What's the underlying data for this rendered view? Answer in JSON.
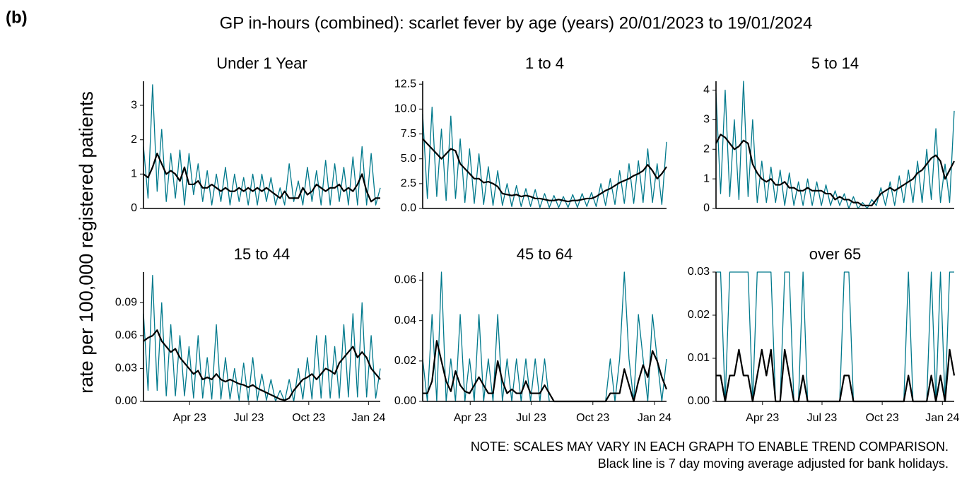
{
  "label": "(b)",
  "title": "GP in-hours (combined): scarlet fever by age (years) 20/01/2023 to 19/01/2024",
  "y_label": "rate per 100,000 registered patients",
  "notes": [
    "NOTE: SCALES MAY VARY IN EACH GRAPH TO ENABLE TREND COMPARISON.",
    "Black line is 7 day moving average adjusted for bank holidays."
  ],
  "chart_data": [
    {
      "type": "line",
      "title": "Under 1 Year",
      "x": [
        0,
        7,
        14,
        21,
        28,
        35,
        42,
        49,
        56,
        63,
        70,
        77,
        84,
        91,
        98,
        105,
        112,
        119,
        126,
        133,
        140,
        147,
        154,
        161,
        168,
        175,
        182,
        189,
        196,
        203,
        210,
        217,
        224,
        231,
        238,
        245,
        252,
        259,
        266,
        273,
        280,
        287,
        294,
        301,
        308,
        315,
        322,
        329,
        336,
        343,
        350,
        357,
        364
      ],
      "xlim": [
        0,
        364
      ],
      "ylim": [
        0,
        3.7
      ],
      "yticks": [
        0,
        1,
        2,
        3
      ],
      "series": [
        {
          "color": "#00798c",
          "values": [
            1.8,
            0.3,
            3.6,
            0.5,
            2.3,
            0.2,
            1.6,
            0.3,
            1.7,
            0.1,
            1.6,
            0.4,
            1.3,
            0.2,
            1.1,
            0.1,
            1.0,
            0.2,
            1.2,
            0.1,
            1.0,
            0.2,
            0.9,
            0.1,
            1.0,
            0.1,
            1.0,
            0.2,
            0.9,
            0.1,
            0.6,
            0.1,
            1.3,
            0.2,
            0.8,
            0.1,
            1.2,
            0.2,
            1.1,
            0.1,
            1.4,
            0.1,
            1.3,
            0.2,
            1.2,
            0.1,
            1.5,
            0.1,
            1.8,
            0.1,
            1.6,
            0.1,
            0.6
          ]
        },
        {
          "color": "#000000",
          "values": [
            1.0,
            0.9,
            1.2,
            1.6,
            1.3,
            1.0,
            1.1,
            1.0,
            0.8,
            1.2,
            0.7,
            0.7,
            0.8,
            0.6,
            0.6,
            0.7,
            0.6,
            0.5,
            0.6,
            0.5,
            0.5,
            0.6,
            0.5,
            0.6,
            0.5,
            0.6,
            0.5,
            0.6,
            0.5,
            0.4,
            0.3,
            0.5,
            0.3,
            0.3,
            0.3,
            0.6,
            0.4,
            0.5,
            0.7,
            0.6,
            0.5,
            0.6,
            0.6,
            0.7,
            0.5,
            0.6,
            0.5,
            0.7,
            1.0,
            0.5,
            0.2,
            0.3,
            0.3
          ]
        }
      ]
    },
    {
      "type": "line",
      "title": "1 to 4",
      "x": [
        0,
        7,
        14,
        21,
        28,
        35,
        42,
        49,
        56,
        63,
        70,
        77,
        84,
        91,
        98,
        105,
        112,
        119,
        126,
        133,
        140,
        147,
        154,
        161,
        168,
        175,
        182,
        189,
        196,
        203,
        210,
        217,
        224,
        231,
        238,
        245,
        252,
        259,
        266,
        273,
        280,
        287,
        294,
        301,
        308,
        315,
        322,
        329,
        336,
        343,
        350,
        357,
        364
      ],
      "xlim": [
        0,
        364
      ],
      "ylim": [
        0,
        12.8
      ],
      "yticks": [
        {
          "value": 0,
          "label": "0.0"
        },
        2.5,
        {
          "value": 5,
          "label": "5.0"
        },
        7.5,
        {
          "value": 10,
          "label": "10.0"
        },
        12.5
      ],
      "series": [
        {
          "color": "#00798c",
          "values": [
            9.5,
            1.0,
            10.2,
            1.2,
            8.0,
            0.8,
            9.3,
            1.0,
            7.0,
            0.6,
            6.0,
            0.5,
            5.5,
            0.4,
            4.2,
            0.3,
            3.8,
            0.3,
            2.5,
            0.2,
            2.3,
            0.2,
            2.0,
            0.2,
            1.9,
            0.1,
            1.5,
            0.1,
            1.3,
            0.1,
            1.2,
            0.1,
            1.4,
            0.1,
            1.5,
            0.2,
            1.6,
            0.2,
            2.5,
            0.3,
            3.0,
            0.4,
            3.8,
            0.5,
            4.5,
            0.5,
            4.8,
            0.6,
            6.0,
            0.6,
            4.5,
            0.4,
            6.7
          ]
        },
        {
          "color": "#000000",
          "values": [
            7,
            6.5,
            6,
            5.5,
            5,
            5.5,
            6,
            5.8,
            4.5,
            4,
            3.5,
            3,
            3,
            2.6,
            2.7,
            2.5,
            2.2,
            1.5,
            1.4,
            1.3,
            1.4,
            1.2,
            1.3,
            1.2,
            1.0,
            1.0,
            0.9,
            0.8,
            0.8,
            0.9,
            0.8,
            0.7,
            0.8,
            0.8,
            0.9,
            1.0,
            1.0,
            1.2,
            1.5,
            1.8,
            2.0,
            2.3,
            2.6,
            2.8,
            3.0,
            3.3,
            3.5,
            3.8,
            4.4,
            3.8,
            3.0,
            3.5,
            4.2
          ]
        }
      ]
    },
    {
      "type": "line",
      "title": "5 to 14",
      "x": [
        0,
        7,
        14,
        21,
        28,
        35,
        42,
        49,
        56,
        63,
        70,
        77,
        84,
        91,
        98,
        105,
        112,
        119,
        126,
        133,
        140,
        147,
        154,
        161,
        168,
        175,
        182,
        189,
        196,
        203,
        210,
        217,
        224,
        231,
        238,
        245,
        252,
        259,
        266,
        273,
        280,
        287,
        294,
        301,
        308,
        315,
        322,
        329,
        336,
        343,
        350,
        357,
        364
      ],
      "xlim": [
        0,
        364
      ],
      "ylim": [
        0,
        4.3
      ],
      "yticks": [
        0,
        1,
        2,
        3,
        4
      ],
      "series": [
        {
          "color": "#00798c",
          "values": [
            3.9,
            0.5,
            4.0,
            0.4,
            3.0,
            0.3,
            4.3,
            0.4,
            3.0,
            0.2,
            1.6,
            0.2,
            1.4,
            0.2,
            1.3,
            0.1,
            1.2,
            0.1,
            0.9,
            0.1,
            1.0,
            0.1,
            0.9,
            0.1,
            0.8,
            0.1,
            0.6,
            0.1,
            0.5,
            0.0,
            0.4,
            0.0,
            0.2,
            0.0,
            0.3,
            0.1,
            0.7,
            0.1,
            0.9,
            0.1,
            1.1,
            0.2,
            1.3,
            0.2,
            1.6,
            0.2,
            2.0,
            0.3,
            2.7,
            0.2,
            1.5,
            0.2,
            3.3
          ]
        },
        {
          "color": "#000000",
          "values": [
            2.2,
            2.5,
            2.4,
            2.2,
            2.0,
            2.1,
            2.3,
            2.2,
            1.5,
            1.2,
            1.0,
            0.9,
            1.0,
            0.8,
            0.8,
            0.9,
            0.7,
            0.7,
            0.6,
            0.6,
            0.7,
            0.6,
            0.6,
            0.6,
            0.5,
            0.5,
            0.3,
            0.4,
            0.3,
            0.3,
            0.2,
            0.2,
            0.1,
            0.1,
            0.1,
            0.3,
            0.5,
            0.6,
            0.7,
            0.6,
            0.7,
            0.8,
            0.9,
            1.0,
            1.2,
            1.3,
            1.5,
            1.7,
            1.8,
            1.6,
            1.0,
            1.3,
            1.6
          ]
        }
      ]
    },
    {
      "type": "line",
      "title": "15 to 44",
      "x": [
        0,
        7,
        14,
        21,
        28,
        35,
        42,
        49,
        56,
        63,
        70,
        77,
        84,
        91,
        98,
        105,
        112,
        119,
        126,
        133,
        140,
        147,
        154,
        161,
        168,
        175,
        182,
        189,
        196,
        203,
        210,
        217,
        224,
        231,
        238,
        245,
        252,
        259,
        266,
        273,
        280,
        287,
        294,
        301,
        308,
        315,
        322,
        329,
        336,
        343,
        350,
        357,
        364
      ],
      "xlim": [
        0,
        364
      ],
      "ylim": [
        0,
        0.118
      ],
      "xticks": [
        {
          "value": 71,
          "label": "Apr 23"
        },
        {
          "value": 162,
          "label": "Jul 23"
        },
        {
          "value": 254,
          "label": "Oct 23"
        },
        {
          "value": 346,
          "label": "Jan 24"
        }
      ],
      "yticks": [
        {
          "value": 0,
          "label": "0.00"
        },
        0.03,
        0.06,
        0.09
      ],
      "series": [
        {
          "color": "#00798c",
          "values": [
            0.08,
            0.01,
            0.115,
            0.01,
            0.09,
            0.005,
            0.07,
            0.005,
            0.06,
            0.005,
            0.05,
            0.003,
            0.06,
            0.003,
            0.04,
            0.002,
            0.07,
            0.002,
            0.04,
            0.002,
            0.03,
            0.001,
            0.035,
            0.001,
            0.04,
            0.001,
            0.025,
            0.001,
            0.02,
            0.0,
            0.01,
            0.0,
            0.02,
            0.0,
            0.03,
            0.002,
            0.04,
            0.002,
            0.06,
            0.003,
            0.06,
            0.003,
            0.05,
            0.003,
            0.07,
            0.004,
            0.08,
            0.004,
            0.09,
            0.004,
            0.06,
            0.003,
            0.03
          ]
        },
        {
          "color": "#000000",
          "values": [
            0.055,
            0.058,
            0.06,
            0.065,
            0.055,
            0.05,
            0.045,
            0.048,
            0.04,
            0.035,
            0.03,
            0.025,
            0.028,
            0.02,
            0.022,
            0.02,
            0.025,
            0.02,
            0.018,
            0.02,
            0.018,
            0.016,
            0.015,
            0.013,
            0.015,
            0.012,
            0.01,
            0.008,
            0.006,
            0.004,
            0.002,
            0.001,
            0.003,
            0.01,
            0.015,
            0.02,
            0.022,
            0.025,
            0.02,
            0.025,
            0.03,
            0.028,
            0.025,
            0.035,
            0.04,
            0.045,
            0.05,
            0.04,
            0.045,
            0.04,
            0.03,
            0.025,
            0.02
          ]
        }
      ]
    },
    {
      "type": "line",
      "title": "45 to 64",
      "x": [
        0,
        7,
        14,
        21,
        28,
        35,
        42,
        49,
        56,
        63,
        70,
        77,
        84,
        91,
        98,
        105,
        112,
        119,
        126,
        133,
        140,
        147,
        154,
        161,
        168,
        175,
        182,
        189,
        196,
        203,
        210,
        217,
        224,
        231,
        238,
        245,
        252,
        259,
        266,
        273,
        280,
        287,
        294,
        301,
        308,
        315,
        322,
        329,
        336,
        343,
        350,
        357,
        364
      ],
      "xlim": [
        0,
        364
      ],
      "ylim": [
        0,
        0.064
      ],
      "xticks": [
        {
          "value": 71,
          "label": "Apr 23"
        },
        {
          "value": 162,
          "label": "Jul 23"
        },
        {
          "value": 254,
          "label": "Oct 23"
        },
        {
          "value": 346,
          "label": "Jan 24"
        }
      ],
      "yticks": [
        {
          "value": 0,
          "label": "0.00"
        },
        0.02,
        0.04,
        0.06
      ],
      "series": [
        {
          "color": "#00798c",
          "values": [
            0.021,
            0,
            0.043,
            0,
            0.064,
            0,
            0.021,
            0,
            0.043,
            0,
            0.021,
            0,
            0.043,
            0,
            0.021,
            0,
            0.043,
            0,
            0.021,
            0,
            0.021,
            0,
            0.021,
            0,
            0.021,
            0,
            0.021,
            0,
            0,
            0,
            0,
            0,
            0,
            0,
            0,
            0,
            0,
            0,
            0,
            0,
            0.021,
            0,
            0.021,
            0.064,
            0.021,
            0,
            0.043,
            0.021,
            0,
            0.043,
            0.021,
            0,
            0.021
          ]
        },
        {
          "color": "#000000",
          "values": [
            0.004,
            0.004,
            0.01,
            0.03,
            0.02,
            0.01,
            0.005,
            0.015,
            0.008,
            0.005,
            0.004,
            0.008,
            0.012,
            0.008,
            0.004,
            0.004,
            0.02,
            0.01,
            0.004,
            0.006,
            0.004,
            0.004,
            0.01,
            0.004,
            0.004,
            0.004,
            0.008,
            0.004,
            0,
            0,
            0,
            0,
            0,
            0,
            0,
            0,
            0,
            0,
            0,
            0,
            0.004,
            0.004,
            0.004,
            0.016,
            0.008,
            0,
            0.01,
            0.018,
            0.012,
            0.025,
            0.02,
            0.012,
            0.006
          ]
        }
      ]
    },
    {
      "type": "line",
      "title": "over 65",
      "x": [
        0,
        7,
        14,
        21,
        28,
        35,
        42,
        49,
        56,
        63,
        70,
        77,
        84,
        91,
        98,
        105,
        112,
        119,
        126,
        133,
        140,
        147,
        154,
        161,
        168,
        175,
        182,
        189,
        196,
        203,
        210,
        217,
        224,
        231,
        238,
        245,
        252,
        259,
        266,
        273,
        280,
        287,
        294,
        301,
        308,
        315,
        322,
        329,
        336,
        343,
        350,
        357,
        364
      ],
      "xlim": [
        0,
        364
      ],
      "ylim": [
        0,
        0.03
      ],
      "xticks": [
        {
          "value": 71,
          "label": "Apr 23"
        },
        {
          "value": 162,
          "label": "Jul 23"
        },
        {
          "value": 254,
          "label": "Oct 23"
        },
        {
          "value": 346,
          "label": "Jan 24"
        }
      ],
      "yticks": [
        {
          "value": 0,
          "label": "0.00"
        },
        0.01,
        0.02,
        0.03
      ],
      "series": [
        {
          "color": "#00798c",
          "values": [
            0.03,
            0.03,
            0,
            0.03,
            0.03,
            0.03,
            0.03,
            0.03,
            0,
            0.03,
            0.03,
            0.03,
            0.03,
            0,
            0,
            0.03,
            0.03,
            0,
            0,
            0.03,
            0,
            0,
            0,
            0,
            0,
            0,
            0,
            0,
            0.03,
            0.03,
            0,
            0,
            0,
            0,
            0,
            0,
            0,
            0,
            0,
            0,
            0,
            0,
            0.03,
            0,
            0,
            0,
            0,
            0.03,
            0,
            0.03,
            0,
            0.03,
            0.03
          ]
        },
        {
          "color": "#000000",
          "values": [
            0.006,
            0.006,
            0,
            0.006,
            0.006,
            0.012,
            0.006,
            0.006,
            0,
            0.006,
            0.012,
            0.006,
            0.012,
            0,
            0,
            0.012,
            0.006,
            0,
            0,
            0.006,
            0,
            0,
            0,
            0,
            0,
            0,
            0,
            0,
            0.006,
            0.006,
            0,
            0,
            0,
            0,
            0,
            0,
            0,
            0,
            0,
            0,
            0,
            0,
            0.006,
            0,
            0,
            0,
            0,
            0.006,
            0,
            0.006,
            0,
            0.012,
            0.006
          ]
        }
      ]
    }
  ]
}
